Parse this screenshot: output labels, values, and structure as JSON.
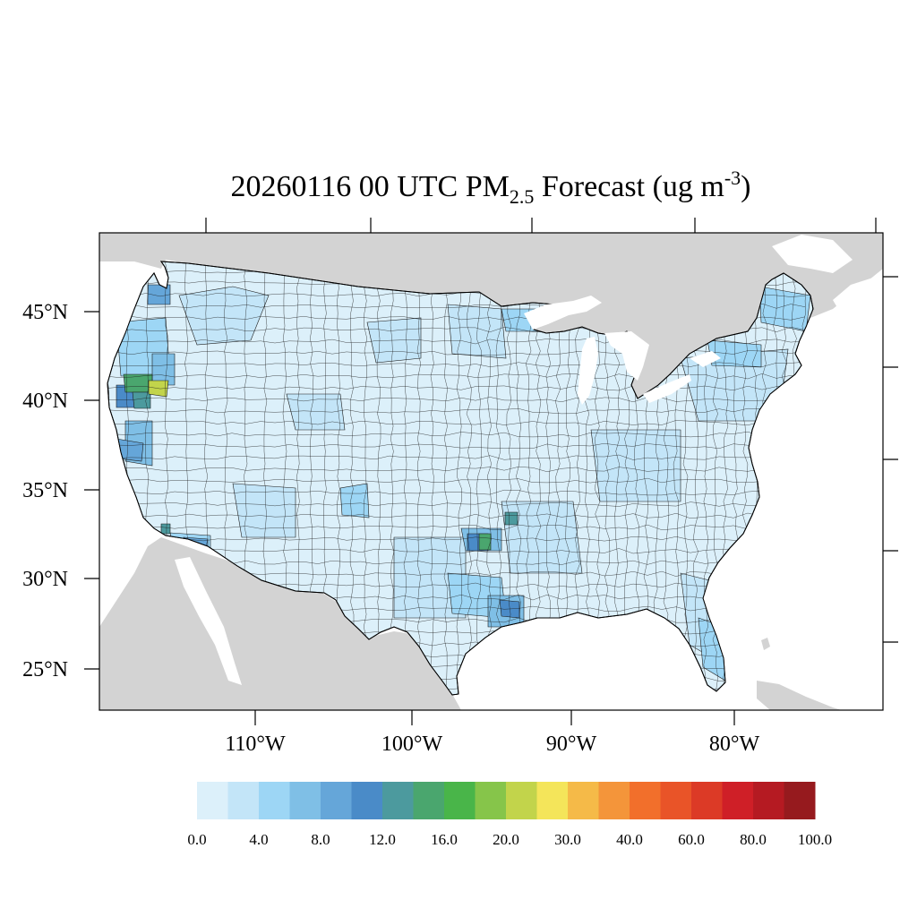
{
  "title": {
    "main": "20260116 00 UTC PM",
    "sub": "2.5",
    "mid": " Forecast (ug m",
    "sup": "-3",
    "end": ")"
  },
  "lat_labels": [
    "45°N",
    "40°N",
    "35°N",
    "30°N",
    "25°N"
  ],
  "lon_labels": [
    "110°W",
    "100°W",
    "90°W",
    "80°W"
  ],
  "colorbar": {
    "colors": [
      "#dcf0fa",
      "#c3e5f8",
      "#9dd6f5",
      "#7fbfe6",
      "#65a6d9",
      "#4a8bc8",
      "#4c9a9e",
      "#4aa66e",
      "#49b549",
      "#86c54a",
      "#c2d44b",
      "#f4e55a",
      "#f5ba48",
      "#f4953a",
      "#f26f2b",
      "#e95428",
      "#dc3a26",
      "#cf1f27",
      "#b51a22",
      "#961a1e"
    ],
    "labels": [
      "0.0",
      "4.0",
      "8.0",
      "12.0",
      "16.0",
      "20.0",
      "30.0",
      "40.0",
      "60.0",
      "80.0",
      "100.0"
    ]
  },
  "map_colors": {
    "base": "#dcf0fa",
    "light": "#c3e5f8",
    "mid": "#9dd6f5",
    "medium": "#7fbfe6",
    "blue": "#65a6d9",
    "dark_blue": "#4a8bc8",
    "teal": "#4c9a9e",
    "green": "#4aa66e",
    "yellow_green": "#c2d44b",
    "land": "#d3d3d3"
  }
}
